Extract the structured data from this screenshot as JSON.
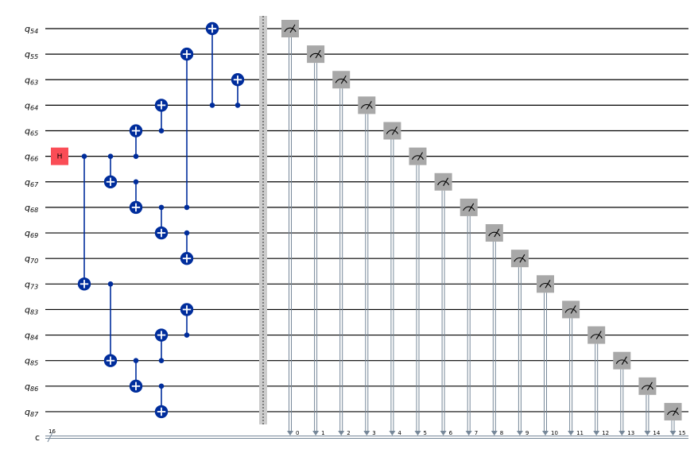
{
  "circuit": {
    "qubits": [
      "54",
      "55",
      "63",
      "64",
      "65",
      "66",
      "67",
      "68",
      "69",
      "70",
      "73",
      "83",
      "84",
      "85",
      "86",
      "87"
    ],
    "qubit_prefix": "q",
    "classical_register": {
      "label": "c",
      "size_label": "16"
    },
    "colors": {
      "wire": "#000000",
      "gate": "#002d9c",
      "hadamard": "#fa4d56",
      "measure_box": "#a8a8a8",
      "measure_line": "#778899",
      "barrier": "#cccccc"
    },
    "hadamard": {
      "qubit": "66",
      "label": "H"
    },
    "cnots": [
      {
        "step": 0,
        "control": "66",
        "target": "73"
      },
      {
        "step": 1,
        "control": "66",
        "target": "67"
      },
      {
        "step": 1,
        "control": "73",
        "target": "85"
      },
      {
        "step": 2,
        "control": "66",
        "target": "65"
      },
      {
        "step": 2,
        "control": "67",
        "target": "68"
      },
      {
        "step": 2,
        "control": "85",
        "target": "86"
      },
      {
        "step": 3,
        "control": "65",
        "target": "64"
      },
      {
        "step": 3,
        "control": "68",
        "target": "69"
      },
      {
        "step": 3,
        "control": "85",
        "target": "84"
      },
      {
        "step": 3,
        "control": "86",
        "target": "87"
      },
      {
        "step": 4,
        "control": "68",
        "target": "55"
      },
      {
        "step": 4,
        "control": "69",
        "target": "70"
      },
      {
        "step": 4,
        "control": "84",
        "target": "83"
      },
      {
        "step": 5,
        "control": "64",
        "target": "54"
      },
      {
        "step": 6,
        "control": "64",
        "target": "63"
      }
    ],
    "measurements": [
      {
        "qubit": "54",
        "bit": "0"
      },
      {
        "qubit": "55",
        "bit": "1"
      },
      {
        "qubit": "63",
        "bit": "2"
      },
      {
        "qubit": "64",
        "bit": "3"
      },
      {
        "qubit": "65",
        "bit": "4"
      },
      {
        "qubit": "66",
        "bit": "5"
      },
      {
        "qubit": "67",
        "bit": "6"
      },
      {
        "qubit": "68",
        "bit": "7"
      },
      {
        "qubit": "69",
        "bit": "8"
      },
      {
        "qubit": "70",
        "bit": "9"
      },
      {
        "qubit": "73",
        "bit": "10"
      },
      {
        "qubit": "83",
        "bit": "11"
      },
      {
        "qubit": "84",
        "bit": "12"
      },
      {
        "qubit": "85",
        "bit": "13"
      },
      {
        "qubit": "86",
        "bit": "14"
      },
      {
        "qubit": "87",
        "bit": "15"
      }
    ]
  }
}
